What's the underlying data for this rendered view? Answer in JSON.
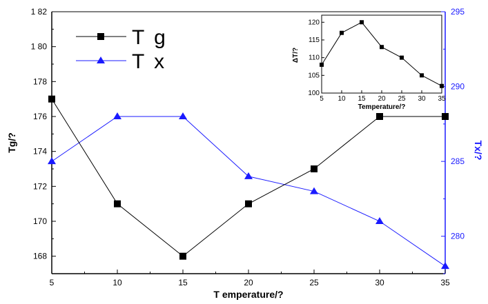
{
  "chart_data": [
    {
      "type": "line",
      "x": [
        5,
        10,
        15,
        20,
        25,
        30,
        35
      ],
      "xlabel": "T emperature/?",
      "ylabel": "Tg/?",
      "y2label": "Tx/?",
      "xlim": [
        5,
        35
      ],
      "ylim": [
        167,
        182
      ],
      "y2lim": [
        277.5,
        295
      ],
      "xticks": [
        "5",
        "10",
        "15",
        "20",
        "25",
        "30",
        "35"
      ],
      "yticks": [
        "168",
        "170",
        "172",
        "174",
        "176",
        "178",
        "1 80",
        "1 82"
      ],
      "y2ticks": [
        "280",
        "285",
        "290",
        "295"
      ],
      "grid": false,
      "legend_position": "top-left",
      "series": [
        {
          "name": "T g",
          "axis": "left",
          "marker": "square",
          "color": "#000000",
          "values": [
            177,
            171,
            168,
            171,
            173,
            176,
            176
          ]
        },
        {
          "name": "T x",
          "axis": "right",
          "marker": "triangle",
          "color": "#1a1aff",
          "values": [
            285,
            288,
            288,
            284,
            283,
            281,
            278
          ]
        }
      ]
    },
    {
      "type": "line",
      "x": [
        5,
        10,
        15,
        20,
        25,
        30,
        35
      ],
      "xlabel": "Temperature/?",
      "ylabel": "ΔT/?",
      "xlim": [
        5,
        35
      ],
      "ylim": [
        100,
        122
      ],
      "xticks": [
        "5",
        "10",
        "15",
        "20",
        "25",
        "30",
        "35"
      ],
      "yticks": [
        "100",
        "105",
        "110",
        "115",
        "120"
      ],
      "series": [
        {
          "marker": "square",
          "color": "#000000",
          "values": [
            108,
            117,
            120,
            113,
            110,
            105,
            102
          ]
        }
      ]
    }
  ]
}
